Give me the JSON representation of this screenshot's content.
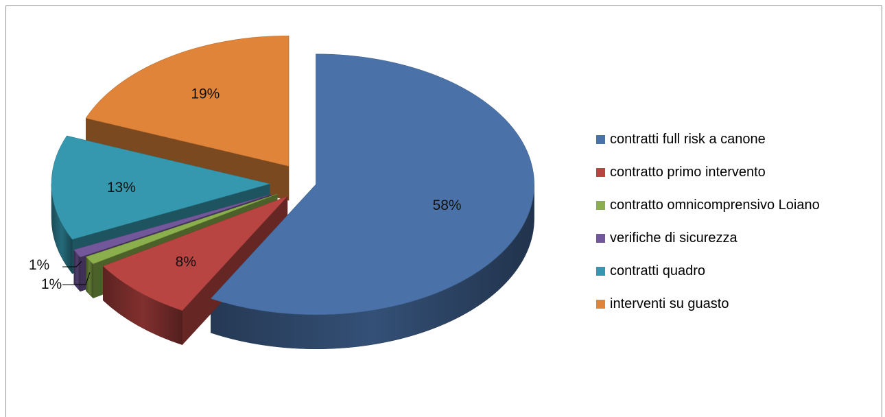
{
  "chart_data": {
    "type": "pie",
    "style": "3d-exploded",
    "title": "",
    "series": [
      {
        "values": [
          58,
          8,
          1,
          1,
          13,
          19
        ]
      }
    ],
    "slices": [
      {
        "label": "contratti full risk a canone",
        "value": 58,
        "display": "58%",
        "color": "#4A72A8"
      },
      {
        "label": "contratto primo intervento",
        "value": 8,
        "display": "8%",
        "color": "#B84542"
      },
      {
        "label": "contratto omnicomprensivo Loiano",
        "value": 1,
        "display": "1%",
        "color": "#8AAF4C"
      },
      {
        "label": "verifiche di sicurezza",
        "value": 1,
        "display": "1%",
        "color": "#72589A"
      },
      {
        "label": "contratti quadro",
        "value": 13,
        "display": "13%",
        "color": "#3598AE"
      },
      {
        "label": "interventi su guasto",
        "value": 19,
        "display": "19%",
        "color": "#E0843A"
      }
    ],
    "legend_position": "right"
  }
}
